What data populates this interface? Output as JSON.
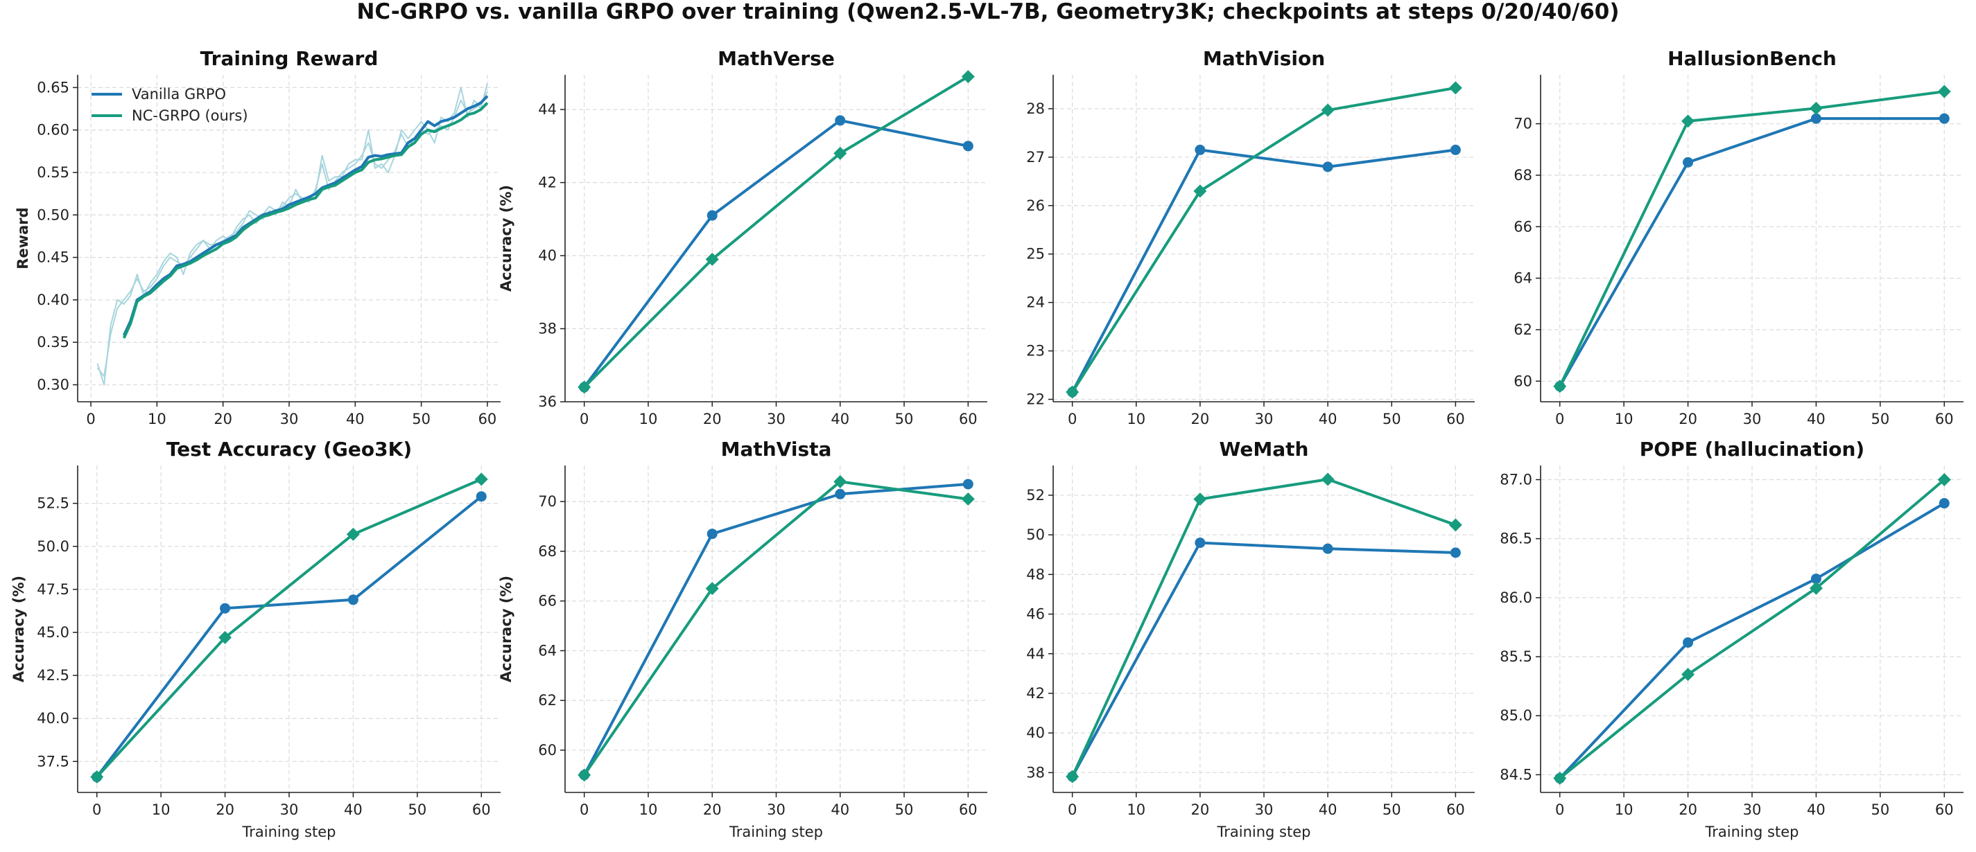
{
  "figure": {
    "title": "NC-GRPO vs. vanilla GRPO over training (Qwen2.5-VL-7B, Geometry3K; checkpoints at steps 0/20/40/60)"
  },
  "colors": {
    "vanilla": "#1f77b4",
    "nc": "#179c7d",
    "raw": "#a8d5dd",
    "grid": "#dddddd",
    "axis": "#222222"
  },
  "legend": {
    "position": "upper-left",
    "entries": [
      "Vanilla GRPO",
      "NC-GRPO (ours)"
    ]
  },
  "chart_data": [
    {
      "type": "line",
      "title": "Training Reward",
      "xlabel": "",
      "ylabel": "Reward",
      "xlim": [
        -2,
        62
      ],
      "ylim": [
        0.28,
        0.665
      ],
      "xticks": [
        0,
        10,
        20,
        30,
        40,
        50,
        60
      ],
      "yticks": [
        0.3,
        0.35,
        0.4,
        0.45,
        0.5,
        0.55,
        0.6,
        0.65
      ],
      "ytick_labels": [
        "0.30",
        "0.35",
        "0.40",
        "0.45",
        "0.50",
        "0.55",
        "0.60",
        "0.65"
      ],
      "grid": true,
      "raw_series": [
        {
          "x": [
            1,
            2,
            3,
            4,
            5,
            6,
            7,
            8,
            9,
            10,
            11,
            12,
            13,
            14,
            15,
            16,
            17,
            18,
            19,
            20,
            21,
            22,
            23,
            24,
            25,
            26,
            27,
            28,
            29,
            30,
            31,
            32,
            33,
            34,
            35,
            36,
            37,
            38,
            39,
            40,
            41,
            42,
            43,
            44,
            45,
            46,
            47,
            48,
            49,
            50,
            51,
            52,
            53,
            54,
            55,
            56,
            57,
            58,
            59,
            60
          ],
          "y": [
            0.325,
            0.3,
            0.37,
            0.4,
            0.395,
            0.405,
            0.43,
            0.405,
            0.42,
            0.43,
            0.445,
            0.455,
            0.45,
            0.43,
            0.455,
            0.465,
            0.47,
            0.465,
            0.465,
            0.47,
            0.475,
            0.48,
            0.49,
            0.505,
            0.5,
            0.495,
            0.505,
            0.5,
            0.515,
            0.51,
            0.53,
            0.515,
            0.52,
            0.525,
            0.57,
            0.54,
            0.545,
            0.545,
            0.56,
            0.565,
            0.565,
            0.6,
            0.555,
            0.56,
            0.55,
            0.57,
            0.6,
            0.59,
            0.6,
            0.61,
            0.6,
            0.585,
            0.615,
            0.61,
            0.62,
            0.65,
            0.615,
            0.635,
            0.625,
            0.655
          ]
        },
        {
          "x": [
            1,
            2,
            3,
            4,
            5,
            6,
            7,
            8,
            9,
            10,
            11,
            12,
            13,
            14,
            15,
            16,
            17,
            18,
            19,
            20,
            21,
            22,
            23,
            24,
            25,
            26,
            27,
            28,
            29,
            30,
            31,
            32,
            33,
            34,
            35,
            36,
            37,
            38,
            39,
            40,
            41,
            42,
            43,
            44,
            45,
            46,
            47,
            48,
            49,
            50,
            51,
            52,
            53,
            54,
            55,
            56,
            57,
            58,
            59,
            60
          ],
          "y": [
            0.32,
            0.31,
            0.36,
            0.39,
            0.4,
            0.41,
            0.425,
            0.41,
            0.415,
            0.425,
            0.44,
            0.45,
            0.445,
            0.44,
            0.45,
            0.46,
            0.47,
            0.46,
            0.47,
            0.475,
            0.47,
            0.485,
            0.495,
            0.5,
            0.49,
            0.5,
            0.51,
            0.505,
            0.51,
            0.52,
            0.525,
            0.52,
            0.515,
            0.53,
            0.56,
            0.53,
            0.54,
            0.55,
            0.555,
            0.56,
            0.57,
            0.585,
            0.56,
            0.555,
            0.565,
            0.575,
            0.595,
            0.58,
            0.59,
            0.6,
            0.595,
            0.6,
            0.605,
            0.6,
            0.615,
            0.635,
            0.62,
            0.625,
            0.63,
            0.645
          ]
        }
      ],
      "series": [
        {
          "name": "Vanilla GRPO",
          "x": [
            5,
            6,
            7,
            8,
            9,
            10,
            11,
            12,
            13,
            14,
            15,
            16,
            17,
            18,
            19,
            20,
            21,
            22,
            23,
            24,
            25,
            26,
            27,
            28,
            29,
            30,
            31,
            32,
            33,
            34,
            35,
            36,
            37,
            38,
            39,
            40,
            41,
            42,
            43,
            44,
            45,
            46,
            47,
            48,
            49,
            50,
            51,
            52,
            53,
            54,
            55,
            56,
            57,
            58,
            59,
            60
          ],
          "y": [
            0.358,
            0.375,
            0.4,
            0.405,
            0.41,
            0.418,
            0.425,
            0.43,
            0.44,
            0.442,
            0.445,
            0.45,
            0.455,
            0.46,
            0.465,
            0.468,
            0.472,
            0.476,
            0.485,
            0.49,
            0.495,
            0.5,
            0.502,
            0.505,
            0.507,
            0.512,
            0.515,
            0.518,
            0.521,
            0.525,
            0.532,
            0.535,
            0.538,
            0.543,
            0.548,
            0.553,
            0.557,
            0.568,
            0.57,
            0.569,
            0.571,
            0.572,
            0.573,
            0.585,
            0.59,
            0.6,
            0.61,
            0.605,
            0.61,
            0.612,
            0.615,
            0.62,
            0.625,
            0.628,
            0.632,
            0.64
          ]
        },
        {
          "name": "NC-GRPO (ours)",
          "x": [
            5,
            6,
            7,
            8,
            9,
            10,
            11,
            12,
            13,
            14,
            15,
            16,
            17,
            18,
            19,
            20,
            21,
            22,
            23,
            24,
            25,
            26,
            27,
            28,
            29,
            30,
            31,
            32,
            33,
            34,
            35,
            36,
            37,
            38,
            39,
            40,
            41,
            42,
            43,
            44,
            45,
            46,
            47,
            48,
            49,
            50,
            51,
            52,
            53,
            54,
            55,
            56,
            57,
            58,
            59,
            60
          ],
          "y": [
            0.355,
            0.372,
            0.398,
            0.404,
            0.408,
            0.415,
            0.422,
            0.428,
            0.437,
            0.44,
            0.443,
            0.447,
            0.452,
            0.456,
            0.46,
            0.466,
            0.469,
            0.474,
            0.482,
            0.488,
            0.493,
            0.498,
            0.5,
            0.503,
            0.505,
            0.508,
            0.512,
            0.515,
            0.518,
            0.52,
            0.53,
            0.533,
            0.535,
            0.54,
            0.545,
            0.55,
            0.553,
            0.562,
            0.565,
            0.566,
            0.568,
            0.57,
            0.571,
            0.58,
            0.585,
            0.595,
            0.6,
            0.598,
            0.602,
            0.605,
            0.608,
            0.612,
            0.618,
            0.62,
            0.624,
            0.632
          ]
        }
      ]
    },
    {
      "type": "line",
      "title": "MathVerse",
      "xlabel": "",
      "ylabel": "Accuracy (%)",
      "xlim": [
        -3,
        63
      ],
      "ylim": [
        36.0,
        44.95
      ],
      "xticks": [
        0,
        10,
        20,
        30,
        40,
        50,
        60
      ],
      "yticks": [
        36,
        38,
        40,
        42,
        44
      ],
      "ytick_labels": [
        "36",
        "38",
        "40",
        "42",
        "44"
      ],
      "grid": true,
      "series": [
        {
          "name": "Vanilla GRPO",
          "x": [
            0,
            20,
            40,
            60
          ],
          "y": [
            36.4,
            41.1,
            43.7,
            43.0
          ]
        },
        {
          "name": "NC-GRPO (ours)",
          "x": [
            0,
            20,
            40,
            60
          ],
          "y": [
            36.4,
            39.9,
            42.8,
            44.9
          ]
        }
      ]
    },
    {
      "type": "line",
      "title": "MathVision",
      "xlabel": "",
      "ylabel": "",
      "xlim": [
        -3,
        63
      ],
      "ylim": [
        21.95,
        28.7
      ],
      "xticks": [
        0,
        10,
        20,
        30,
        40,
        50,
        60
      ],
      "yticks": [
        22,
        23,
        24,
        25,
        26,
        27,
        28
      ],
      "ytick_labels": [
        "22",
        "23",
        "24",
        "25",
        "26",
        "27",
        "28"
      ],
      "grid": true,
      "series": [
        {
          "name": "Vanilla GRPO",
          "x": [
            0,
            20,
            40,
            60
          ],
          "y": [
            22.15,
            27.15,
            26.8,
            27.15
          ]
        },
        {
          "name": "NC-GRPO (ours)",
          "x": [
            0,
            20,
            40,
            60
          ],
          "y": [
            22.15,
            26.3,
            27.97,
            28.43
          ]
        }
      ]
    },
    {
      "type": "line",
      "title": "HallusionBench",
      "xlabel": "",
      "ylabel": "",
      "xlim": [
        -3,
        63
      ],
      "ylim": [
        59.2,
        71.9
      ],
      "xticks": [
        0,
        10,
        20,
        30,
        40,
        50,
        60
      ],
      "yticks": [
        60,
        62,
        64,
        66,
        68,
        70
      ],
      "ytick_labels": [
        "60",
        "62",
        "64",
        "66",
        "68",
        "70"
      ],
      "grid": true,
      "series": [
        {
          "name": "Vanilla GRPO",
          "x": [
            0,
            20,
            40,
            60
          ],
          "y": [
            59.8,
            68.5,
            70.2,
            70.2
          ]
        },
        {
          "name": "NC-GRPO (ours)",
          "x": [
            0,
            20,
            40,
            60
          ],
          "y": [
            59.8,
            70.1,
            70.6,
            71.25
          ]
        }
      ]
    },
    {
      "type": "line",
      "title": "Test Accuracy (Geo3K)",
      "xlabel": "Training step",
      "ylabel": "Accuracy (%)",
      "xlim": [
        -3,
        63
      ],
      "ylim": [
        35.7,
        54.7
      ],
      "xticks": [
        0,
        10,
        20,
        30,
        40,
        50,
        60
      ],
      "yticks": [
        37.5,
        40.0,
        42.5,
        45.0,
        47.5,
        50.0,
        52.5
      ],
      "ytick_labels": [
        "37.5",
        "40.0",
        "42.5",
        "45.0",
        "47.5",
        "50.0",
        "52.5"
      ],
      "grid": true,
      "series": [
        {
          "name": "Vanilla GRPO",
          "x": [
            0,
            20,
            40,
            60
          ],
          "y": [
            36.6,
            46.4,
            46.9,
            52.9
          ]
        },
        {
          "name": "NC-GRPO (ours)",
          "x": [
            0,
            20,
            40,
            60
          ],
          "y": [
            36.6,
            44.7,
            50.7,
            53.9
          ]
        }
      ]
    },
    {
      "type": "line",
      "title": "MathVista",
      "xlabel": "Training step",
      "ylabel": "Accuracy (%)",
      "xlim": [
        -3,
        63
      ],
      "ylim": [
        58.3,
        71.45
      ],
      "xticks": [
        0,
        10,
        20,
        30,
        40,
        50,
        60
      ],
      "yticks": [
        60,
        62,
        64,
        66,
        68,
        70
      ],
      "ytick_labels": [
        "60",
        "62",
        "64",
        "66",
        "68",
        "70"
      ],
      "grid": true,
      "series": [
        {
          "name": "Vanilla GRPO",
          "x": [
            0,
            20,
            40,
            60
          ],
          "y": [
            59.0,
            68.7,
            70.3,
            70.7
          ]
        },
        {
          "name": "NC-GRPO (ours)",
          "x": [
            0,
            20,
            40,
            60
          ],
          "y": [
            59.0,
            66.5,
            70.8,
            70.1
          ]
        }
      ]
    },
    {
      "type": "line",
      "title": "WeMath",
      "xlabel": "Training step",
      "ylabel": "",
      "xlim": [
        -3,
        63
      ],
      "ylim": [
        37.0,
        53.5
      ],
      "xticks": [
        0,
        10,
        20,
        30,
        40,
        50,
        60
      ],
      "yticks": [
        38,
        40,
        42,
        44,
        46,
        48,
        50,
        52
      ],
      "ytick_labels": [
        "38",
        "40",
        "42",
        "44",
        "46",
        "48",
        "50",
        "52"
      ],
      "grid": true,
      "series": [
        {
          "name": "Vanilla GRPO",
          "x": [
            0,
            20,
            40,
            60
          ],
          "y": [
            37.8,
            49.6,
            49.3,
            49.1
          ]
        },
        {
          "name": "NC-GRPO (ours)",
          "x": [
            0,
            20,
            40,
            60
          ],
          "y": [
            37.8,
            51.8,
            52.8,
            50.5
          ]
        }
      ]
    },
    {
      "type": "line",
      "title": "POPE (hallucination)",
      "xlabel": "Training step",
      "ylabel": "",
      "xlim": [
        -3,
        63
      ],
      "ylim": [
        84.35,
        87.12
      ],
      "xticks": [
        0,
        10,
        20,
        30,
        40,
        50,
        60
      ],
      "yticks": [
        84.5,
        85.0,
        85.5,
        86.0,
        86.5,
        87.0
      ],
      "ytick_labels": [
        "84.5",
        "85.0",
        "85.5",
        "86.0",
        "86.5",
        "87.0"
      ],
      "grid": true,
      "series": [
        {
          "name": "Vanilla GRPO",
          "x": [
            0,
            20,
            40,
            60
          ],
          "y": [
            84.47,
            85.62,
            86.16,
            86.8
          ]
        },
        {
          "name": "NC-GRPO (ours)",
          "x": [
            0,
            20,
            40,
            60
          ],
          "y": [
            84.47,
            85.35,
            86.08,
            87.0
          ]
        }
      ]
    }
  ]
}
